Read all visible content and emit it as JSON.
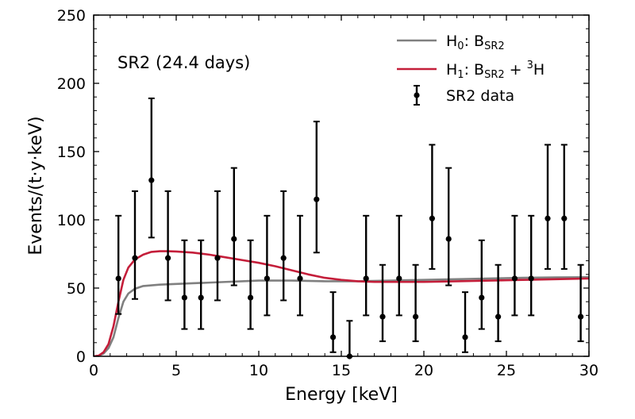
{
  "chart_data": {
    "type": "scatter",
    "annotation": "SR2 (24.4 days)",
    "xlabel": "Energy [keV]",
    "ylabel": "Events/(t·y·keV)",
    "xlim": [
      0,
      30
    ],
    "ylim": [
      0,
      250
    ],
    "x_ticks": [
      0,
      5,
      10,
      15,
      20,
      25,
      30
    ],
    "y_ticks": [
      0,
      50,
      100,
      150,
      200,
      250
    ],
    "grid": false,
    "legend_position": "top-right",
    "legend": [
      {
        "label": "H0: BSR2",
        "color": "#808080",
        "kind": "line"
      },
      {
        "label": "H1: BSR2 + 3H",
        "color": "#c41e3a",
        "kind": "line"
      },
      {
        "label": "SR2 data",
        "color": "#000000",
        "kind": "errorbar"
      }
    ],
    "series": [
      {
        "kind": "data",
        "color": "#000000",
        "x": [
          1.5,
          2.5,
          3.5,
          4.5,
          5.5,
          6.5,
          7.5,
          8.5,
          9.5,
          10.5,
          11.5,
          12.5,
          13.5,
          14.5,
          15.5,
          16.5,
          17.5,
          18.5,
          19.5,
          20.5,
          21.5,
          22.5,
          23.5,
          24.5,
          25.5,
          26.5,
          27.5,
          28.5,
          29.5
        ],
        "y": [
          57,
          72,
          129,
          72,
          43,
          43,
          72,
          86,
          43,
          57,
          72,
          57,
          115,
          14,
          0,
          57,
          29,
          57,
          29,
          101,
          86,
          14,
          43,
          29,
          57,
          57,
          101,
          101,
          29
        ],
        "y_err_low": [
          26,
          30,
          42,
          31,
          23,
          23,
          31,
          34,
          23,
          27,
          31,
          27,
          39,
          11,
          0,
          27,
          18,
          27,
          18,
          37,
          34,
          11,
          23,
          18,
          27,
          27,
          37,
          37,
          18
        ],
        "y_err_high": [
          46,
          49,
          60,
          49,
          42,
          42,
          49,
          52,
          42,
          46,
          49,
          46,
          57,
          33,
          26,
          46,
          38,
          46,
          38,
          54,
          52,
          33,
          42,
          38,
          46,
          46,
          54,
          54,
          38
        ]
      },
      {
        "kind": "model",
        "color": "#808080",
        "x": [
          0,
          0.3,
          0.6,
          0.9,
          1.2,
          1.5,
          1.8,
          2.1,
          2.5,
          3,
          4,
          5,
          6,
          7,
          8,
          9,
          10,
          12,
          14,
          16,
          18,
          20,
          22,
          24,
          26,
          28,
          30
        ],
        "y": [
          0,
          0.5,
          2,
          6,
          14,
          28,
          40,
          46,
          49.5,
          51.5,
          52.5,
          53,
          53.5,
          54,
          54.5,
          55,
          55.5,
          55.5,
          55,
          55,
          55.5,
          56,
          56.5,
          57,
          57.5,
          57.8,
          58
        ]
      },
      {
        "kind": "model",
        "color": "#c41e3a",
        "x": [
          0,
          0.3,
          0.6,
          0.9,
          1.2,
          1.5,
          1.8,
          2.1,
          2.5,
          3,
          3.5,
          4,
          4.5,
          5,
          6,
          7,
          8,
          9,
          10,
          11,
          12,
          13,
          14,
          15,
          16,
          17,
          18,
          20,
          22,
          24,
          26,
          28,
          30
        ],
        "y": [
          0,
          0.5,
          3,
          9,
          22,
          40,
          56,
          65,
          71,
          74.5,
          76.5,
          77,
          77,
          76.8,
          76,
          74.5,
          72.5,
          70.5,
          68.5,
          66,
          63,
          60,
          57.5,
          56,
          55,
          54.5,
          54.5,
          54.5,
          55,
          55.5,
          56,
          56.5,
          57
        ]
      }
    ]
  }
}
